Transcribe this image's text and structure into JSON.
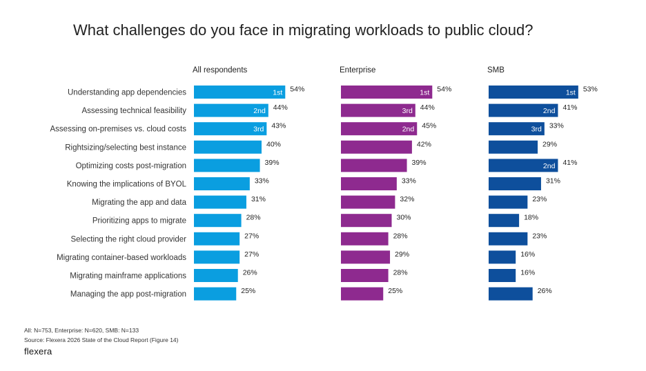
{
  "chart_data": {
    "type": "bar",
    "orientation": "horizontal",
    "title": "What challenges do you face in migrating workloads to public cloud?",
    "categories": [
      "Understanding app dependencies",
      "Assessing technical feasibility",
      "Assessing on-premises vs. cloud costs",
      "Rightsizing/selecting best instance",
      "Optimizing costs post-migration",
      "Knowing the implications of BYOL",
      "Migrating the app and data",
      "Prioritizing apps to migrate",
      "Selecting the right cloud provider",
      "Migrating container-based workloads",
      "Migrating mainframe applications",
      "Managing the app post-migration"
    ],
    "series": [
      {
        "name": "All respondents",
        "color": "#0a9ee0",
        "values": [
          54,
          44,
          43,
          40,
          39,
          33,
          31,
          28,
          27,
          27,
          26,
          25
        ],
        "ranks": [
          "1st",
          "2nd",
          "3rd",
          "",
          "",
          "",
          "",
          "",
          "",
          "",
          "",
          ""
        ]
      },
      {
        "name": "Enterprise",
        "color": "#8e2a8f",
        "values": [
          54,
          44,
          45,
          42,
          39,
          33,
          32,
          30,
          28,
          29,
          28,
          25
        ],
        "ranks": [
          "1st",
          "3rd",
          "2nd",
          "",
          "",
          "",
          "",
          "",
          "",
          "",
          "",
          ""
        ]
      },
      {
        "name": "SMB",
        "color": "#0e4f9c",
        "values": [
          53,
          41,
          33,
          29,
          41,
          31,
          23,
          18,
          23,
          16,
          16,
          26
        ],
        "ranks": [
          "1st",
          "2nd",
          "3rd",
          "",
          "2nd",
          "",
          "",
          "",
          "",
          "",
          "",
          ""
        ]
      }
    ],
    "value_suffix": "%",
    "xlim": [
      0,
      100
    ]
  },
  "footer": {
    "sample": "All: N=753, Enterprise: N=620, SMB: N=133",
    "source": "Source: Flexera 2026 State of the Cloud Report (Figure 14)",
    "brand": "flexera"
  }
}
